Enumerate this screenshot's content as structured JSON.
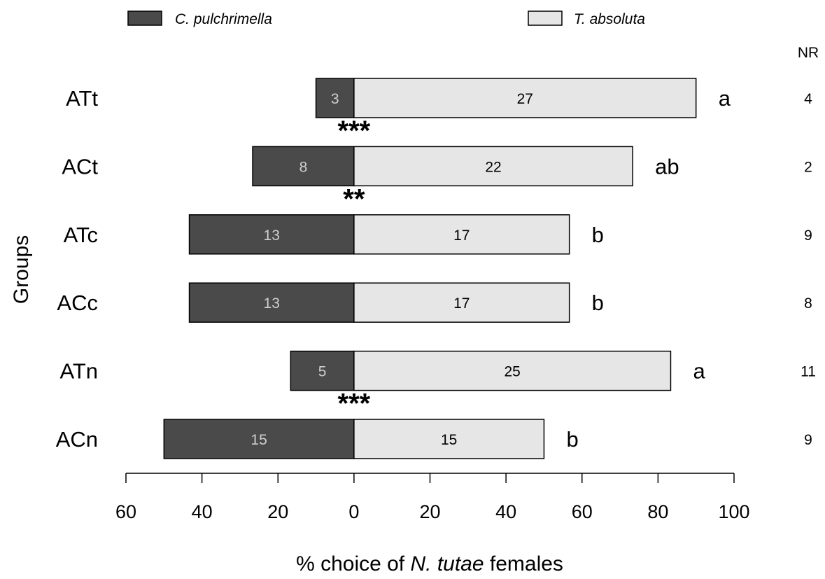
{
  "chart_data": {
    "type": "bar",
    "orientation": "horizontal",
    "stacked": "diverging",
    "x_axis": {
      "title_parts": [
        {
          "text": "% choice of ",
          "italic": false
        },
        {
          "text": "N. tutae",
          "italic": true
        },
        {
          "text": " females",
          "italic": false
        }
      ],
      "range": [
        -60,
        100
      ],
      "ticks": [
        -60,
        -40,
        -20,
        0,
        20,
        40,
        60,
        80,
        100
      ],
      "tick_labels": [
        "60",
        "40",
        "20",
        "0",
        "20",
        "40",
        "60",
        "80",
        "100"
      ]
    },
    "y_axis": {
      "title": "Groups"
    },
    "nr_header": "NR",
    "legend": [
      {
        "label": "C. pulchrimella",
        "color": "#4a4a4a"
      },
      {
        "label": "T. absoluta",
        "color": "#e6e6e6"
      }
    ],
    "grid": false,
    "series": [
      {
        "name": "C. pulchrimella",
        "side": "left",
        "color": "#4a4a4a"
      },
      {
        "name": "T. absoluta",
        "side": "right",
        "color": "#e6e6e6"
      }
    ],
    "groups": [
      {
        "label": "ATt",
        "c_pulchrimella": 3,
        "t_absoluta": 27,
        "c_pct": 10.0,
        "t_pct": 90.0,
        "letter": "a",
        "stars": "***",
        "nr": "4"
      },
      {
        "label": "ACt",
        "c_pulchrimella": 8,
        "t_absoluta": 22,
        "c_pct": 26.67,
        "t_pct": 73.33,
        "letter": "ab",
        "stars": "**",
        "nr": "2"
      },
      {
        "label": "ATc",
        "c_pulchrimella": 13,
        "t_absoluta": 17,
        "c_pct": 43.33,
        "t_pct": 56.67,
        "letter": "b",
        "stars": "",
        "nr": "9"
      },
      {
        "label": "ACc",
        "c_pulchrimella": 13,
        "t_absoluta": 17,
        "c_pct": 43.33,
        "t_pct": 56.67,
        "letter": "b",
        "stars": "",
        "nr": "8"
      },
      {
        "label": "ATn",
        "c_pulchrimella": 5,
        "t_absoluta": 25,
        "c_pct": 16.67,
        "t_pct": 83.33,
        "letter": "a",
        "stars": "***",
        "nr": "11"
      },
      {
        "label": "ACn",
        "c_pulchrimella": 15,
        "t_absoluta": 15,
        "c_pct": 50.0,
        "t_pct": 50.0,
        "letter": "b",
        "stars": "",
        "nr": "9"
      }
    ]
  }
}
